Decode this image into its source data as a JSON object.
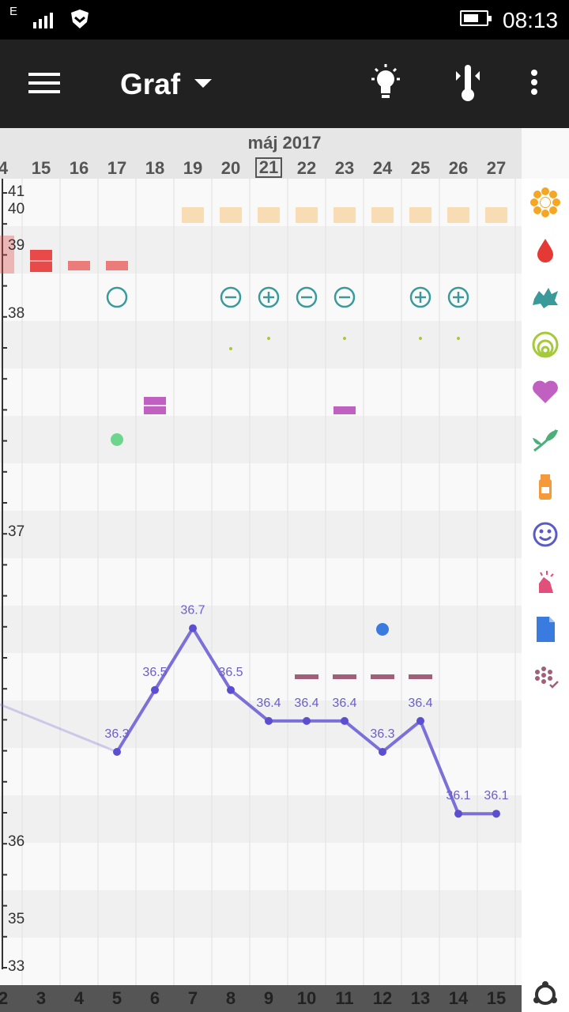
{
  "status_bar": {
    "network": "E",
    "time": "08:13"
  },
  "app_bar": {
    "title": "Graf"
  },
  "date_header": {
    "month": "máj 2017",
    "days": [
      "4",
      "15",
      "16",
      "17",
      "18",
      "19",
      "20",
      "21",
      "22",
      "23",
      "24",
      "25",
      "26",
      "27"
    ],
    "today": "21"
  },
  "cycle_days": [
    "2",
    "3",
    "4",
    "5",
    "6",
    "7",
    "8",
    "9",
    "10",
    "11",
    "12",
    "13",
    "14",
    "15"
  ],
  "y_axis_labels": [
    "41",
    "40",
    "39",
    "38",
    "37",
    "36",
    "35",
    "33"
  ],
  "sidebar_icons": [
    "sun-icon",
    "blood-drop-icon",
    "splash-icon",
    "cervix-icon",
    "heart-icon",
    "leaf-icon",
    "pill-bottle-icon",
    "smiley-icon",
    "hand-icon",
    "document-icon",
    "flower-check-icon"
  ],
  "colors": {
    "temp_line": "#7b6fd8",
    "teal": "#3a9a9a",
    "period": "#e84a4a",
    "pink_bar": "#c060c0",
    "mauve_bar": "#a0607a",
    "fertile": "#f7dcb4"
  },
  "chart_data": {
    "type": "line",
    "x": [
      "17",
      "18",
      "19",
      "20",
      "21",
      "22",
      "23",
      "24",
      "25",
      "26",
      "27"
    ],
    "series": [
      {
        "values": [
          36.3,
          36.5,
          36.7,
          36.5,
          36.4,
          36.4,
          36.4,
          36.3,
          36.4,
          36.1,
          36.1
        ]
      }
    ],
    "labels": [
      "36.3",
      "36.5",
      "36.7",
      "36.5",
      "36.4",
      "36.4",
      "36.4",
      "36.3",
      "36.4",
      "36.1",
      "36.1"
    ],
    "ylim": [
      35.0,
      41.0
    ]
  }
}
